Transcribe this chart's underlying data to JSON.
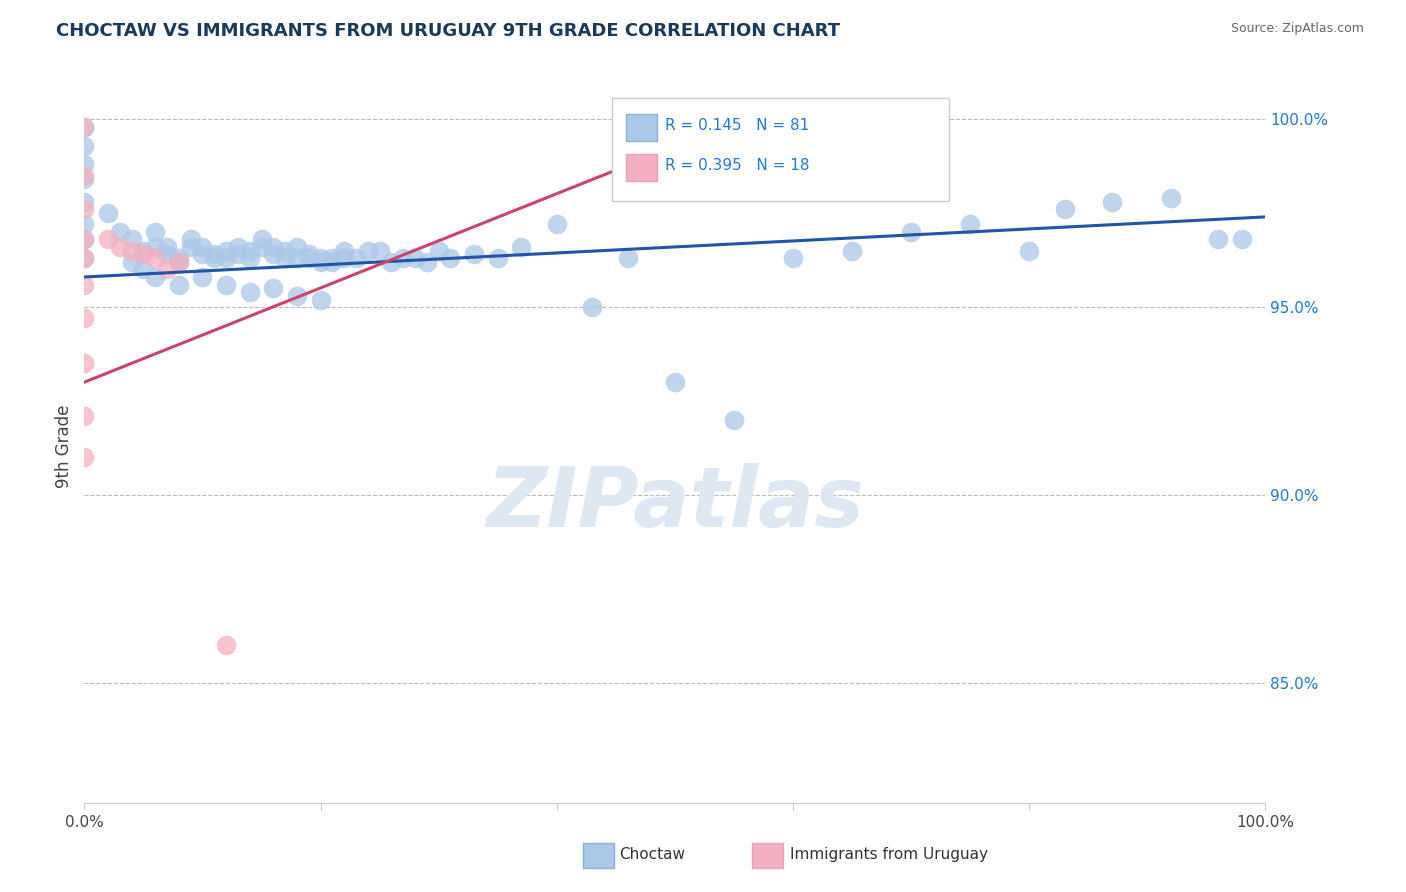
{
  "title": "CHOCTAW VS IMMIGRANTS FROM URUGUAY 9TH GRADE CORRELATION CHART",
  "source_text": "Source: ZipAtlas.com",
  "ylabel": "9th Grade",
  "xlim": [
    0.0,
    1.0
  ],
  "ylim": [
    0.818,
    1.008
  ],
  "right_yticks": [
    0.85,
    0.9,
    0.95,
    1.0
  ],
  "right_yticklabels": [
    "85.0%",
    "90.0%",
    "95.0%",
    "100.0%"
  ],
  "xticks": [
    0.0,
    0.2,
    0.4,
    0.6,
    0.8,
    1.0
  ],
  "xticklabels": [
    "0.0%",
    "",
    "",
    "",
    "",
    "100.0%"
  ],
  "legend_label1": "Choctaw",
  "legend_label2": "Immigrants from Uruguay",
  "blue_color": "#aac8e8",
  "pink_color": "#f4afc0",
  "blue_line_color": "#2255aa",
  "pink_line_color": "#cc4466",
  "r_value_color": "#2277dd",
  "watermark_text": "ZIPatlas",
  "blue_scatter_x": [
    0.0,
    0.0,
    0.0,
    0.0,
    0.0,
    0.0,
    0.0,
    0.0,
    0.02,
    0.03,
    0.04,
    0.05,
    0.06,
    0.07,
    0.08,
    0.09,
    0.1,
    0.11,
    0.12,
    0.13,
    0.14,
    0.15,
    0.16,
    0.17,
    0.18,
    0.19,
    0.2,
    0.21,
    0.22,
    0.23,
    0.24,
    0.25,
    0.06,
    0.07,
    0.08,
    0.09,
    0.1,
    0.11,
    0.12,
    0.13,
    0.14,
    0.15,
    0.16,
    0.17,
    0.18,
    0.19,
    0.2,
    0.21,
    0.22,
    0.26,
    0.27,
    0.28,
    0.29,
    0.3,
    0.31,
    0.33,
    0.35,
    0.37,
    0.4,
    0.43,
    0.46,
    0.5,
    0.55,
    0.6,
    0.65,
    0.7,
    0.75,
    0.8,
    0.83,
    0.87,
    0.92,
    0.96,
    0.98,
    0.04,
    0.05,
    0.06,
    0.08,
    0.1,
    0.12,
    0.14,
    0.16,
    0.18,
    0.2
  ],
  "blue_scatter_y": [
    0.998,
    0.993,
    0.988,
    0.984,
    0.978,
    0.972,
    0.968,
    0.963,
    0.975,
    0.97,
    0.968,
    0.965,
    0.97,
    0.966,
    0.963,
    0.968,
    0.966,
    0.964,
    0.965,
    0.966,
    0.965,
    0.968,
    0.966,
    0.965,
    0.966,
    0.964,
    0.963,
    0.963,
    0.965,
    0.963,
    0.965,
    0.965,
    0.966,
    0.964,
    0.962,
    0.966,
    0.964,
    0.963,
    0.963,
    0.964,
    0.963,
    0.966,
    0.964,
    0.963,
    0.963,
    0.963,
    0.962,
    0.962,
    0.963,
    0.962,
    0.963,
    0.963,
    0.962,
    0.965,
    0.963,
    0.964,
    0.963,
    0.966,
    0.972,
    0.95,
    0.963,
    0.93,
    0.92,
    0.963,
    0.965,
    0.97,
    0.972,
    0.965,
    0.976,
    0.978,
    0.979,
    0.968,
    0.968,
    0.962,
    0.96,
    0.958,
    0.956,
    0.958,
    0.956,
    0.954,
    0.955,
    0.953,
    0.952
  ],
  "pink_scatter_x": [
    0.0,
    0.0,
    0.0,
    0.0,
    0.0,
    0.0,
    0.0,
    0.0,
    0.0,
    0.0,
    0.02,
    0.03,
    0.04,
    0.05,
    0.06,
    0.07,
    0.08,
    0.12
  ],
  "pink_scatter_y": [
    0.998,
    0.985,
    0.976,
    0.968,
    0.963,
    0.956,
    0.947,
    0.935,
    0.921,
    0.91,
    0.968,
    0.966,
    0.965,
    0.964,
    0.963,
    0.96,
    0.962,
    0.86
  ],
  "blue_line_x0": 0.0,
  "blue_line_x1": 1.0,
  "blue_line_y0": 0.958,
  "blue_line_y1": 0.974,
  "pink_line_x0": 0.0,
  "pink_line_x1": 0.55,
  "pink_line_y0": 0.93,
  "pink_line_y1": 0.999
}
